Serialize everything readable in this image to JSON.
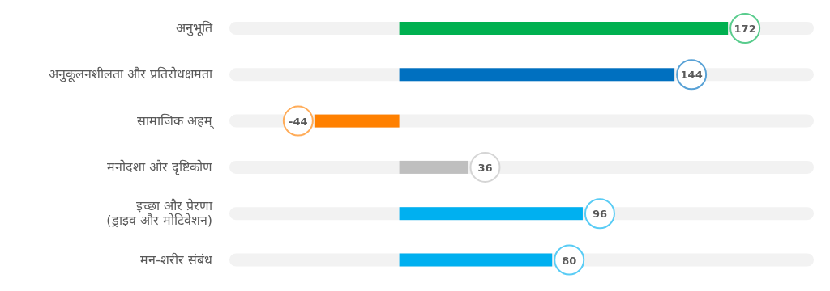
{
  "chart_data": {
    "type": "bar",
    "orientation": "horizontal",
    "data_labels": true,
    "categories": [
      "अनुभूति",
      "अनुकूलनशीलता और प्रतिरोधक्षमता",
      "सामाजिक अहम्",
      "मनोदशा और दृष्टिकोण",
      "इच्छा और प्रेरणा\n(ड्राइव और मोटिवेशन)",
      "मन-शरीर संबंध"
    ],
    "values": [
      172,
      144,
      -44,
      36,
      96,
      80
    ],
    "colors": [
      "#00b050",
      "#0070c0",
      "#ff8000",
      "#bfbfbf",
      "#00b0f0",
      "#00b0f0"
    ]
  }
}
